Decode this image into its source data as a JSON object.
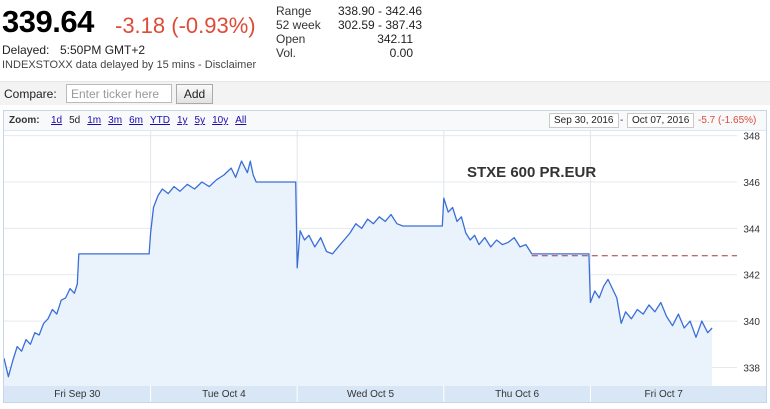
{
  "quote": {
    "price": "339.64",
    "change": "-3.18 (-0.93%)",
    "delayed_label": "Delayed:",
    "delayed_time": "5:50PM GMT+2",
    "source_text": "INDEXSTOXX data delayed by 15 mins - Disclaimer"
  },
  "stats": [
    {
      "label": "Range",
      "value": "338.90 - 342.46"
    },
    {
      "label": "52 week",
      "value": "302.59 - 387.43"
    },
    {
      "label": "Open",
      "value": "342.11"
    },
    {
      "label": "Vol.",
      "value": "0.00"
    }
  ],
  "compare": {
    "label": "Compare:",
    "placeholder": "Enter ticker here",
    "button": "Add"
  },
  "zoom": {
    "label": "Zoom:",
    "options": [
      "1d",
      "5d",
      "1m",
      "3m",
      "6m",
      "YTD",
      "1y",
      "5y",
      "10y",
      "All"
    ],
    "active": "5d",
    "from_date": "Sep 30, 2016",
    "separator": "-",
    "to_date": "Oct 07, 2016",
    "range_change": "-5.7 (-1.65%)"
  },
  "colors": {
    "line": "#3a6fd8",
    "area": "#eaf3fc",
    "negative": "#dd4b39",
    "prev_close_line": "#a33a3a"
  },
  "chart_data": {
    "type": "line",
    "title": "STXE 600 PR.EUR",
    "xlabel": "",
    "ylabel": "",
    "ylim": [
      337.2,
      348.2
    ],
    "y_ticks": [
      "348",
      "346",
      "344",
      "342",
      "340",
      "338"
    ],
    "y_tick_values": [
      348,
      346,
      344,
      342,
      340,
      338
    ],
    "x_tick_labels": [
      "Fri Sep 30",
      "Tue Oct 4",
      "Wed Oct 5",
      "Thu Oct 6",
      "Fri Oct 7"
    ],
    "previous_close": 342.82,
    "x_range": [
      0,
      5
    ],
    "series": [
      {
        "values": [
          [
            0.0,
            338.4
          ],
          [
            0.03,
            337.6
          ],
          [
            0.06,
            338.3
          ],
          [
            0.09,
            338.9
          ],
          [
            0.12,
            338.7
          ],
          [
            0.15,
            339.2
          ],
          [
            0.18,
            339.0
          ],
          [
            0.21,
            339.5
          ],
          [
            0.24,
            339.4
          ],
          [
            0.27,
            339.9
          ],
          [
            0.3,
            340.1
          ],
          [
            0.33,
            340.5
          ],
          [
            0.36,
            340.3
          ],
          [
            0.39,
            340.9
          ],
          [
            0.42,
            341.0
          ],
          [
            0.45,
            341.4
          ],
          [
            0.48,
            341.2
          ],
          [
            0.5,
            341.6
          ],
          [
            0.51,
            342.9
          ],
          [
            0.6,
            342.9
          ],
          [
            0.7,
            342.9
          ],
          [
            0.8,
            342.9
          ],
          [
            0.99,
            342.9
          ],
          [
            1.0,
            343.8
          ],
          [
            1.02,
            344.9
          ],
          [
            1.05,
            345.4
          ],
          [
            1.08,
            345.7
          ],
          [
            1.12,
            345.5
          ],
          [
            1.16,
            345.8
          ],
          [
            1.2,
            345.6
          ],
          [
            1.25,
            345.9
          ],
          [
            1.3,
            345.7
          ],
          [
            1.35,
            346.0
          ],
          [
            1.4,
            345.8
          ],
          [
            1.45,
            346.1
          ],
          [
            1.5,
            346.3
          ],
          [
            1.55,
            346.6
          ],
          [
            1.58,
            346.2
          ],
          [
            1.62,
            346.9
          ],
          [
            1.66,
            346.4
          ],
          [
            1.68,
            346.9
          ],
          [
            1.7,
            346.3
          ],
          [
            1.72,
            346.0
          ],
          [
            1.8,
            346.0
          ],
          [
            1.9,
            346.0
          ],
          [
            1.99,
            346.0
          ],
          [
            2.0,
            342.3
          ],
          [
            2.02,
            343.9
          ],
          [
            2.05,
            343.5
          ],
          [
            2.08,
            343.7
          ],
          [
            2.12,
            343.2
          ],
          [
            2.16,
            343.6
          ],
          [
            2.2,
            343.0
          ],
          [
            2.24,
            342.9
          ],
          [
            2.28,
            343.2
          ],
          [
            2.32,
            343.5
          ],
          [
            2.36,
            343.8
          ],
          [
            2.4,
            344.2
          ],
          [
            2.44,
            344.0
          ],
          [
            2.48,
            344.4
          ],
          [
            2.52,
            344.2
          ],
          [
            2.56,
            344.5
          ],
          [
            2.6,
            344.3
          ],
          [
            2.64,
            344.6
          ],
          [
            2.68,
            344.2
          ],
          [
            2.72,
            344.1
          ],
          [
            2.8,
            344.1
          ],
          [
            2.9,
            344.1
          ],
          [
            2.99,
            344.1
          ],
          [
            3.0,
            345.3
          ],
          [
            3.03,
            344.7
          ],
          [
            3.06,
            344.9
          ],
          [
            3.09,
            344.3
          ],
          [
            3.12,
            344.5
          ],
          [
            3.15,
            343.8
          ],
          [
            3.18,
            343.5
          ],
          [
            3.21,
            343.7
          ],
          [
            3.24,
            343.3
          ],
          [
            3.28,
            343.6
          ],
          [
            3.32,
            343.2
          ],
          [
            3.36,
            343.5
          ],
          [
            3.4,
            343.3
          ],
          [
            3.44,
            343.4
          ],
          [
            3.48,
            343.6
          ],
          [
            3.52,
            343.2
          ],
          [
            3.56,
            343.3
          ],
          [
            3.6,
            342.9
          ],
          [
            3.7,
            342.9
          ],
          [
            3.8,
            342.9
          ],
          [
            3.99,
            342.9
          ],
          [
            4.0,
            340.8
          ],
          [
            4.03,
            341.3
          ],
          [
            4.06,
            341.0
          ],
          [
            4.09,
            341.5
          ],
          [
            4.12,
            341.8
          ],
          [
            4.15,
            341.4
          ],
          [
            4.18,
            341.0
          ],
          [
            4.21,
            339.9
          ],
          [
            4.24,
            340.4
          ],
          [
            4.28,
            340.1
          ],
          [
            4.32,
            340.5
          ],
          [
            4.36,
            340.3
          ],
          [
            4.4,
            340.7
          ],
          [
            4.44,
            340.4
          ],
          [
            4.48,
            340.8
          ],
          [
            4.52,
            340.2
          ],
          [
            4.56,
            339.8
          ],
          [
            4.6,
            340.3
          ],
          [
            4.64,
            339.7
          ],
          [
            4.68,
            340.0
          ],
          [
            4.72,
            339.3
          ],
          [
            4.76,
            340.0
          ],
          [
            4.8,
            339.5
          ],
          [
            4.83,
            339.7
          ]
        ]
      }
    ]
  }
}
